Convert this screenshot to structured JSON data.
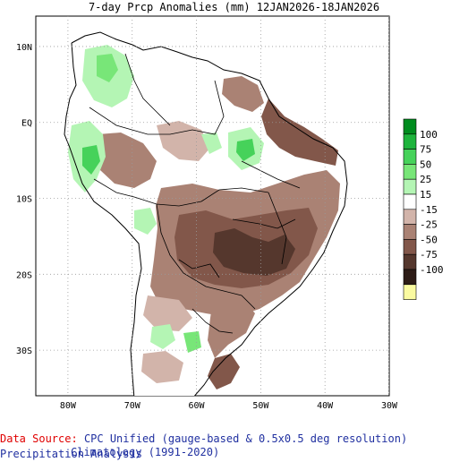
{
  "title": "7-day Prcp Anomalies (mm) 12JAN2026-18JAN2026",
  "map": {
    "lat_labels": [
      {
        "label": "10N",
        "lat": 10
      },
      {
        "label": "EQ",
        "lat": 0
      },
      {
        "label": "10S",
        "lat": -10
      },
      {
        "label": "20S",
        "lat": -20
      },
      {
        "label": "30S",
        "lat": -30
      }
    ],
    "lon_labels": [
      {
        "label": "80W",
        "lon": -80
      },
      {
        "label": "70W",
        "lon": -70
      },
      {
        "label": "60W",
        "lon": -60
      },
      {
        "label": "50W",
        "lon": -50
      },
      {
        "label": "40W",
        "lon": -40
      },
      {
        "label": "30W",
        "lon": -30
      }
    ],
    "lat_range": [
      -36,
      14
    ],
    "lon_range": [
      -85,
      -30
    ],
    "colors": {
      "ocean": "#ffffff",
      "coast": "#000000",
      "grid": "#9a9a9a"
    }
  },
  "legend": {
    "items": [
      {
        "label": "100",
        "color": "#008c1e"
      },
      {
        "label": "75",
        "color": "#1eb43c"
      },
      {
        "label": "50",
        "color": "#46d25a"
      },
      {
        "label": "25",
        "color": "#78e678"
      },
      {
        "label": "15",
        "color": "#b4f5b4"
      },
      {
        "label": "-15",
        "color": "#ffffff"
      },
      {
        "label": "-25",
        "color": "#d2b4aa"
      },
      {
        "label": "-50",
        "color": "#aa8274"
      },
      {
        "label": "-75",
        "color": "#82574a"
      },
      {
        "label": "-100",
        "color": "#55372d"
      },
      {
        "label": "",
        "color": "#2d1c16"
      },
      {
        "label": "",
        "color": "#fafaa0"
      }
    ]
  },
  "footer": {
    "source_label": "Data Source:",
    "source_text": "CPC Unified (gauge-based & 0.5x0.5 deg resolution) Precipitation Analysis",
    "climatology": "Climatology (1991-2020)"
  }
}
